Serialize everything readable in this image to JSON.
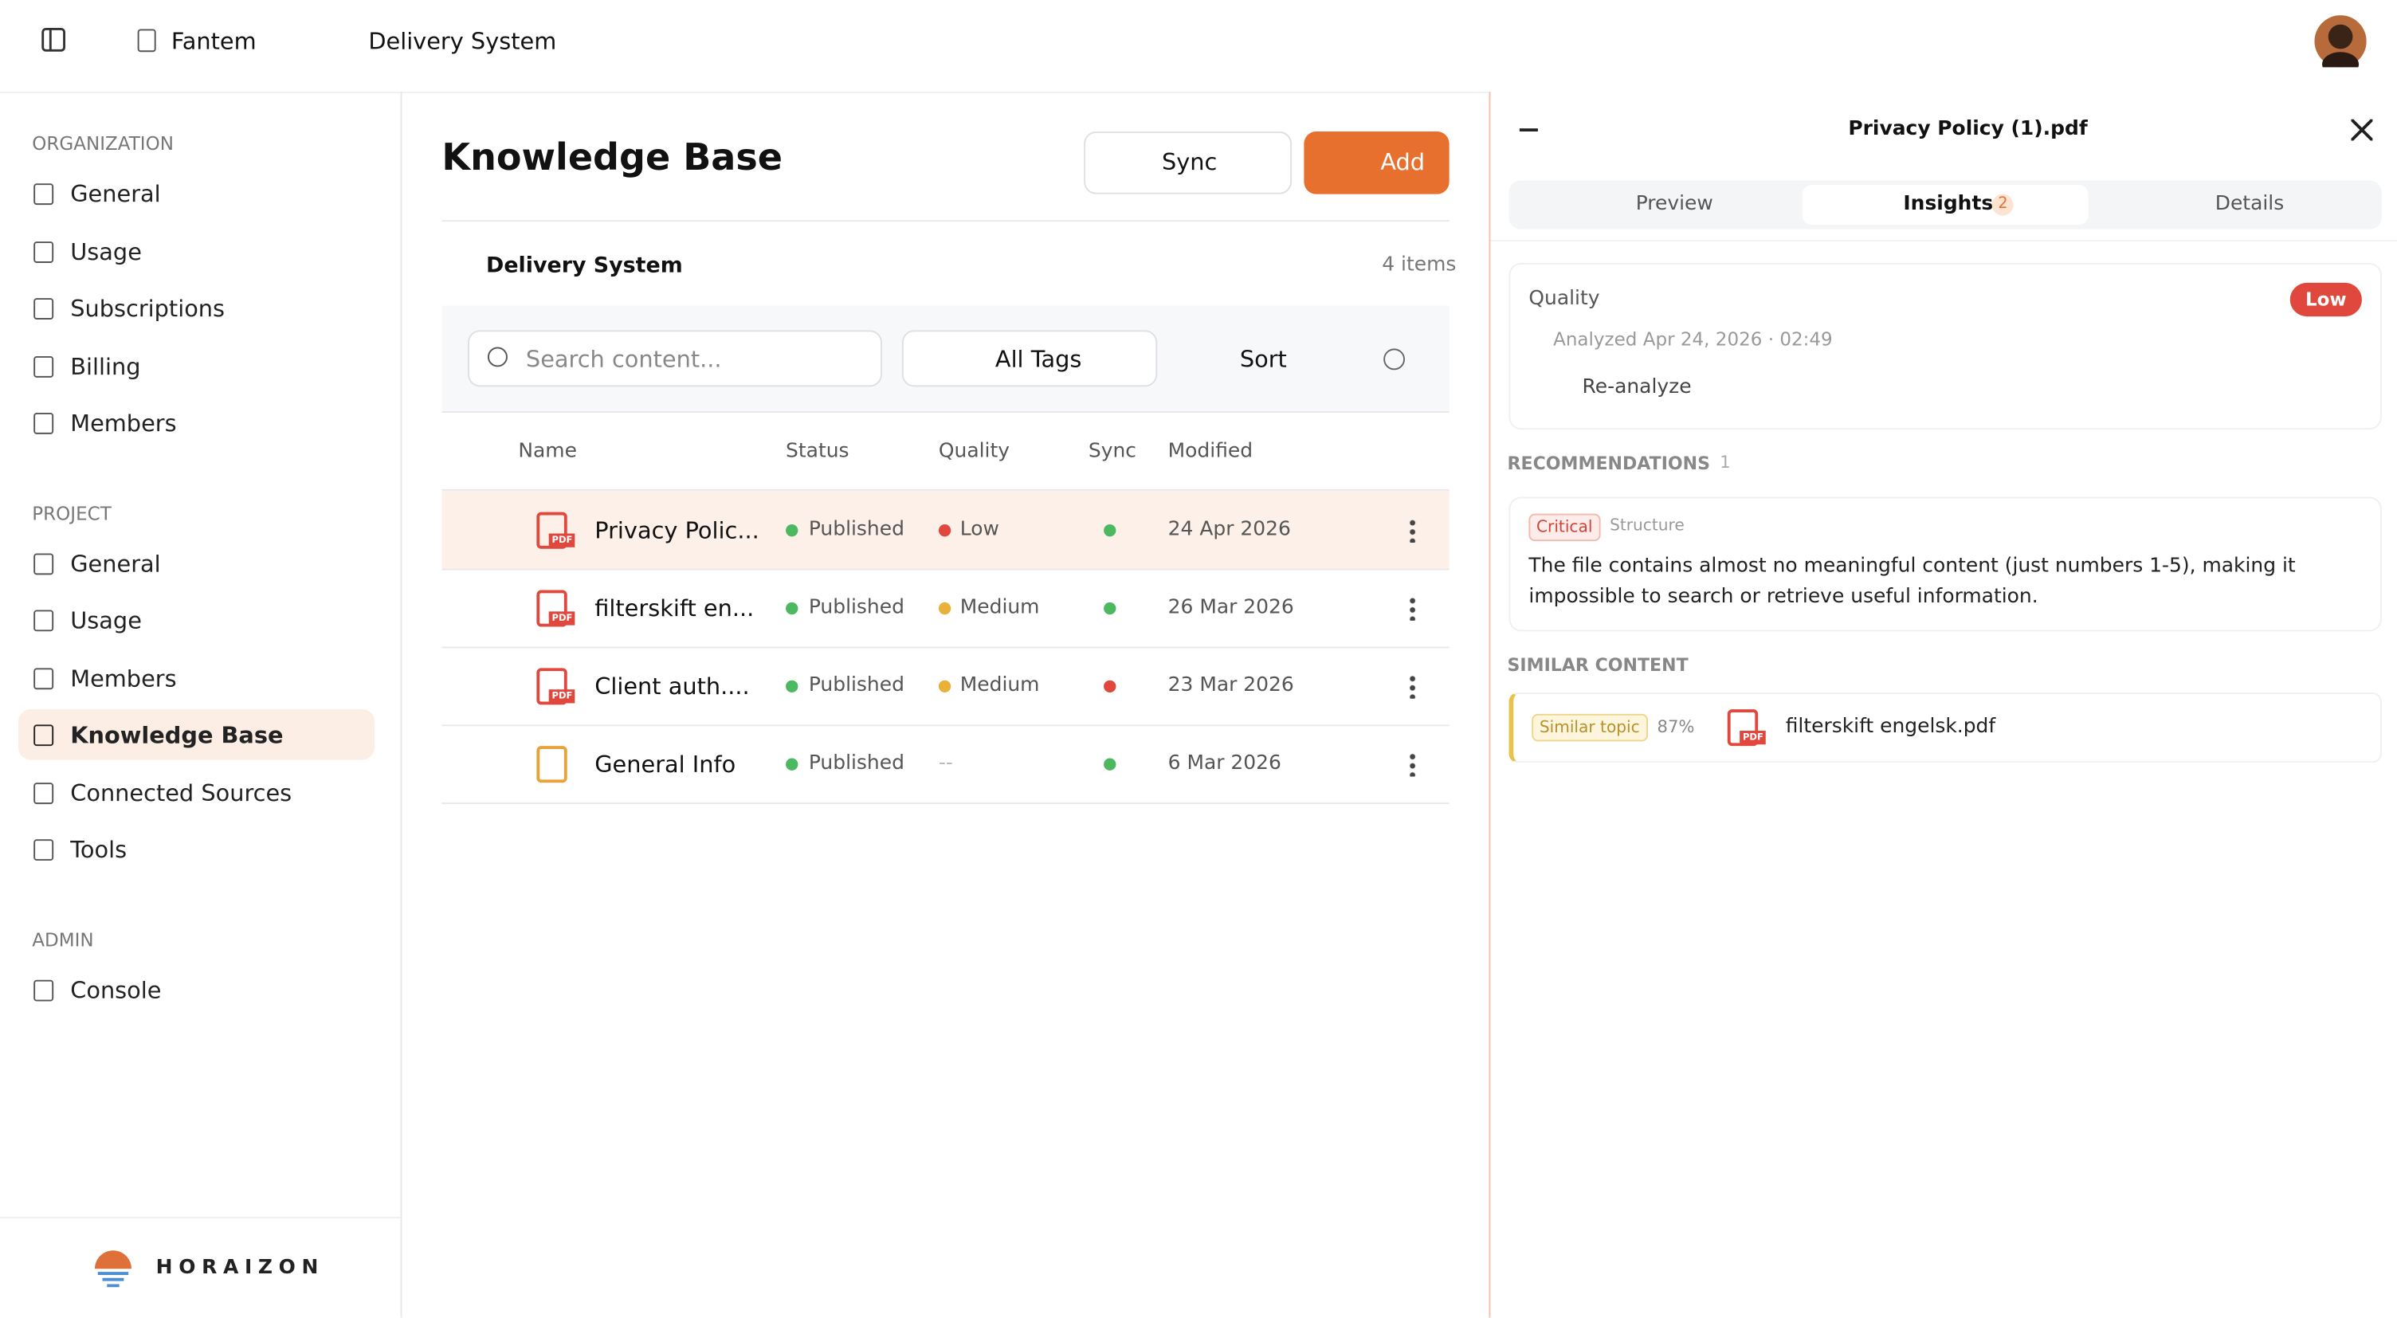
{
  "topbar": {
    "organization": "Fantem",
    "project": "Delivery System"
  },
  "sidebar": {
    "sections": [
      {
        "title": "ORGANIZATION",
        "items": [
          "General",
          "Usage",
          "Subscriptions",
          "Billing",
          "Members"
        ]
      },
      {
        "title": "PROJECT",
        "items": [
          "General",
          "Usage",
          "Members",
          "Knowledge Base",
          "Connected Sources",
          "Tools"
        ]
      },
      {
        "title": "ADMIN",
        "items": [
          "Console"
        ]
      }
    ],
    "brand": "HORAIZON"
  },
  "main": {
    "title": "Knowledge Base",
    "sync_button": "Sync",
    "add_button": "Add",
    "folder": "Delivery System",
    "item_count": "4 items",
    "search_placeholder": "Search content...",
    "tags_filter": "All Tags",
    "sort_button": "Sort",
    "columns": [
      "Name",
      "Status",
      "Quality",
      "Sync",
      "Modified"
    ],
    "file_badge": "PDF",
    "rows": [
      {
        "name": "Privacy Polic...",
        "status": "Published",
        "quality": "Low",
        "quality_color": "#e0483e",
        "sync_color": "#4cb860",
        "modified": "24 Apr 2026",
        "kind": "pdf"
      },
      {
        "name": "filterskift en...",
        "status": "Published",
        "quality": "Medium",
        "quality_color": "#e8b23a",
        "sync_color": "#4cb860",
        "modified": "26 Mar 2026",
        "kind": "pdf"
      },
      {
        "name": "Client auth....",
        "status": "Published",
        "quality": "Medium",
        "quality_color": "#e8b23a",
        "sync_color": "#e0483e",
        "modified": "23 Mar 2026",
        "kind": "pdf"
      },
      {
        "name": "General Info",
        "status": "Published",
        "quality": "--",
        "quality_color": null,
        "sync_color": "#4cb860",
        "modified": "6 Mar 2026",
        "kind": "doc"
      }
    ]
  },
  "panel": {
    "file": "Privacy Policy (1).pdf",
    "tabs": [
      {
        "label": "Preview"
      },
      {
        "label": "Insights",
        "badge": "2"
      },
      {
        "label": "Details"
      }
    ],
    "quality_label": "Quality",
    "quality_level": "Low",
    "analyzed": "Analyzed Apr 24, 2026 · 02:49",
    "reanalyze": "Re-analyze",
    "recommendations_heading": "RECOMMENDATIONS",
    "recommendations_count": "1",
    "recommendations": [
      {
        "severity": "Critical",
        "category": "Structure",
        "text": "The file contains almost no meaningful content (just numbers 1-5), making it impossible to search or retrieve useful information."
      }
    ],
    "similar_heading": "SIMILAR CONTENT",
    "similar": [
      {
        "tag": "Similar topic",
        "score": "87%",
        "file": "filterskift engelsk.pdf",
        "badge": "PDF"
      }
    ]
  }
}
